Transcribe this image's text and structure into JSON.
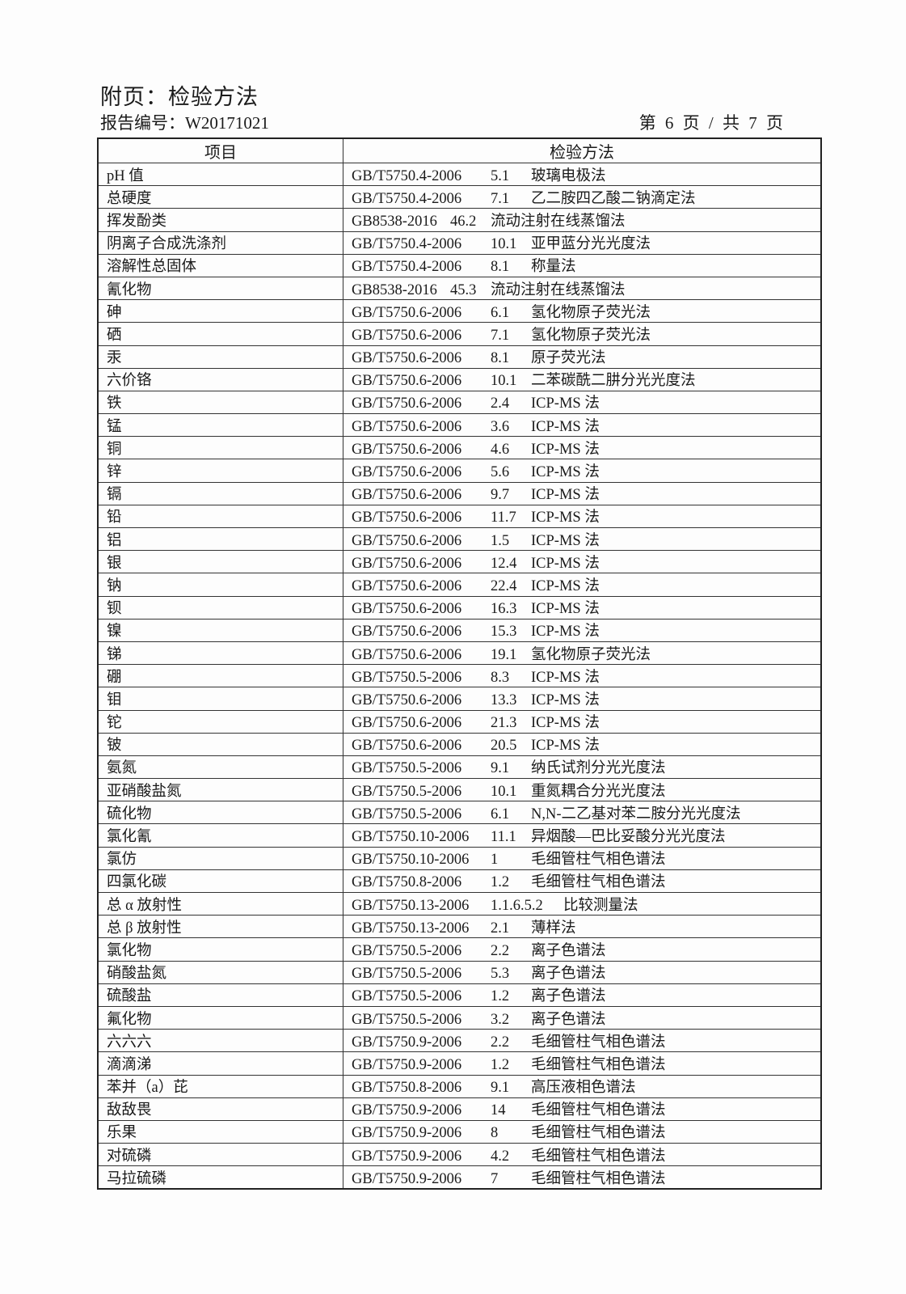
{
  "header": {
    "title": "附页：检验方法",
    "report_no": "报告编号：W20171021",
    "page_info": "第 6 页 / 共 7 页"
  },
  "table": {
    "columns": [
      "项目",
      "检验方法"
    ],
    "rows": [
      {
        "item": "pH 值",
        "std": "GB/T5750.4-2006",
        "clause": "5.1",
        "method": "玻璃电极法"
      },
      {
        "item": "总硬度",
        "std": "GB/T5750.4-2006",
        "clause": "7.1",
        "method": "乙二胺四乙酸二钠滴定法"
      },
      {
        "item": "挥发酚类",
        "std": "GB8538-2016",
        "clause": "46.2",
        "method": "流动注射在线蒸馏法"
      },
      {
        "item": "阴离子合成洗涤剂",
        "std": "GB/T5750.4-2006",
        "clause": "10.1",
        "method": "亚甲蓝分光光度法"
      },
      {
        "item": "溶解性总固体",
        "std": "GB/T5750.4-2006",
        "clause": "8.1",
        "method": "称量法"
      },
      {
        "item": "氰化物",
        "std": "GB8538-2016",
        "clause": "45.3",
        "method": "流动注射在线蒸馏法"
      },
      {
        "item": "砷",
        "std": "GB/T5750.6-2006",
        "clause": "6.1",
        "method": "氢化物原子荧光法"
      },
      {
        "item": "硒",
        "std": "GB/T5750.6-2006",
        "clause": "7.1",
        "method": "氢化物原子荧光法"
      },
      {
        "item": "汞",
        "std": "GB/T5750.6-2006",
        "clause": "8.1",
        "method": "原子荧光法"
      },
      {
        "item": "六价铬",
        "std": "GB/T5750.6-2006",
        "clause": "10.1",
        "method": "二苯碳酰二肼分光光度法"
      },
      {
        "item": "铁",
        "std": "GB/T5750.6-2006",
        "clause": "2.4",
        "method": "ICP-MS 法"
      },
      {
        "item": "锰",
        "std": "GB/T5750.6-2006",
        "clause": "3.6",
        "method": "ICP-MS 法"
      },
      {
        "item": "铜",
        "std": "GB/T5750.6-2006",
        "clause": "4.6",
        "method": "ICP-MS 法"
      },
      {
        "item": "锌",
        "std": "GB/T5750.6-2006",
        "clause": "5.6",
        "method": "ICP-MS 法"
      },
      {
        "item": "镉",
        "std": "GB/T5750.6-2006",
        "clause": "9.7",
        "method": "ICP-MS 法"
      },
      {
        "item": "铅",
        "std": "GB/T5750.6-2006",
        "clause": "11.7",
        "method": "ICP-MS 法"
      },
      {
        "item": "铝",
        "std": "GB/T5750.6-2006",
        "clause": "1.5",
        "method": "ICP-MS 法"
      },
      {
        "item": "银",
        "std": "GB/T5750.6-2006",
        "clause": "12.4",
        "method": "ICP-MS 法"
      },
      {
        "item": "钠",
        "std": "GB/T5750.6-2006",
        "clause": "22.4",
        "method": "ICP-MS 法"
      },
      {
        "item": "钡",
        "std": "GB/T5750.6-2006",
        "clause": "16.3",
        "method": "ICP-MS 法"
      },
      {
        "item": "镍",
        "std": "GB/T5750.6-2006",
        "clause": "15.3",
        "method": "ICP-MS 法"
      },
      {
        "item": "锑",
        "std": "GB/T5750.6-2006",
        "clause": "19.1",
        "method": "氢化物原子荧光法"
      },
      {
        "item": "硼",
        "std": "GB/T5750.5-2006",
        "clause": "8.3",
        "method": "ICP-MS 法"
      },
      {
        "item": "钼",
        "std": "GB/T5750.6-2006",
        "clause": "13.3",
        "method": "ICP-MS 法"
      },
      {
        "item": "铊",
        "std": "GB/T5750.6-2006",
        "clause": "21.3",
        "method": "ICP-MS 法"
      },
      {
        "item": "铍",
        "std": "GB/T5750.6-2006",
        "clause": "20.5",
        "method": "ICP-MS 法"
      },
      {
        "item": "氨氮",
        "std": "GB/T5750.5-2006",
        "clause": "9.1",
        "method": "纳氏试剂分光光度法"
      },
      {
        "item": "亚硝酸盐氮",
        "std": "GB/T5750.5-2006",
        "clause": "10.1",
        "method": "重氮耦合分光光度法"
      },
      {
        "item": "硫化物",
        "std": "GB/T5750.5-2006",
        "clause": "6.1",
        "method": "N,N-二乙基对苯二胺分光光度法"
      },
      {
        "item": "氯化氰",
        "std": "GB/T5750.10-2006",
        "clause": "11.1",
        "method": "异烟酸—巴比妥酸分光光度法"
      },
      {
        "item": "氯仿",
        "std": "GB/T5750.10-2006",
        "clause": "1",
        "method": "毛细管柱气相色谱法"
      },
      {
        "item": "四氯化碳",
        "std": "GB/T5750.8-2006",
        "clause": "1.2",
        "method": "毛细管柱气相色谱法"
      },
      {
        "item": "总 α 放射性",
        "std": "GB/T5750.13-2006",
        "clause": "1.1.6.5.2",
        "method": "比较测量法"
      },
      {
        "item": "总 β 放射性",
        "std": "GB/T5750.13-2006",
        "clause": "2.1",
        "method": "薄样法"
      },
      {
        "item": "氯化物",
        "std": "GB/T5750.5-2006",
        "clause": "2.2",
        "method": "离子色谱法"
      },
      {
        "item": "硝酸盐氮",
        "std": "GB/T5750.5-2006",
        "clause": "5.3",
        "method": "离子色谱法"
      },
      {
        "item": "硫酸盐",
        "std": "GB/T5750.5-2006",
        "clause": "1.2",
        "method": "离子色谱法"
      },
      {
        "item": "氟化物",
        "std": "GB/T5750.5-2006",
        "clause": "3.2",
        "method": "离子色谱法"
      },
      {
        "item": "六六六",
        "std": "GB/T5750.9-2006",
        "clause": "2.2",
        "method": "毛细管柱气相色谱法"
      },
      {
        "item": "滴滴涕",
        "std": "GB/T5750.9-2006",
        "clause": "1.2",
        "method": "毛细管柱气相色谱法"
      },
      {
        "item": "苯并（a）芘",
        "std": "GB/T5750.8-2006",
        "clause": "9.1",
        "method": "高压液相色谱法"
      },
      {
        "item": "敌敌畏",
        "std": "GB/T5750.9-2006",
        "clause": "14",
        "method": "毛细管柱气相色谱法"
      },
      {
        "item": "乐果",
        "std": "GB/T5750.9-2006",
        "clause": "8",
        "method": "毛细管柱气相色谱法"
      },
      {
        "item": "对硫磷",
        "std": "GB/T5750.9-2006",
        "clause": "4.2",
        "method": "毛细管柱气相色谱法"
      },
      {
        "item": "马拉硫磷",
        "std": "GB/T5750.9-2006",
        "clause": "7",
        "method": "毛细管柱气相色谱法"
      }
    ]
  }
}
